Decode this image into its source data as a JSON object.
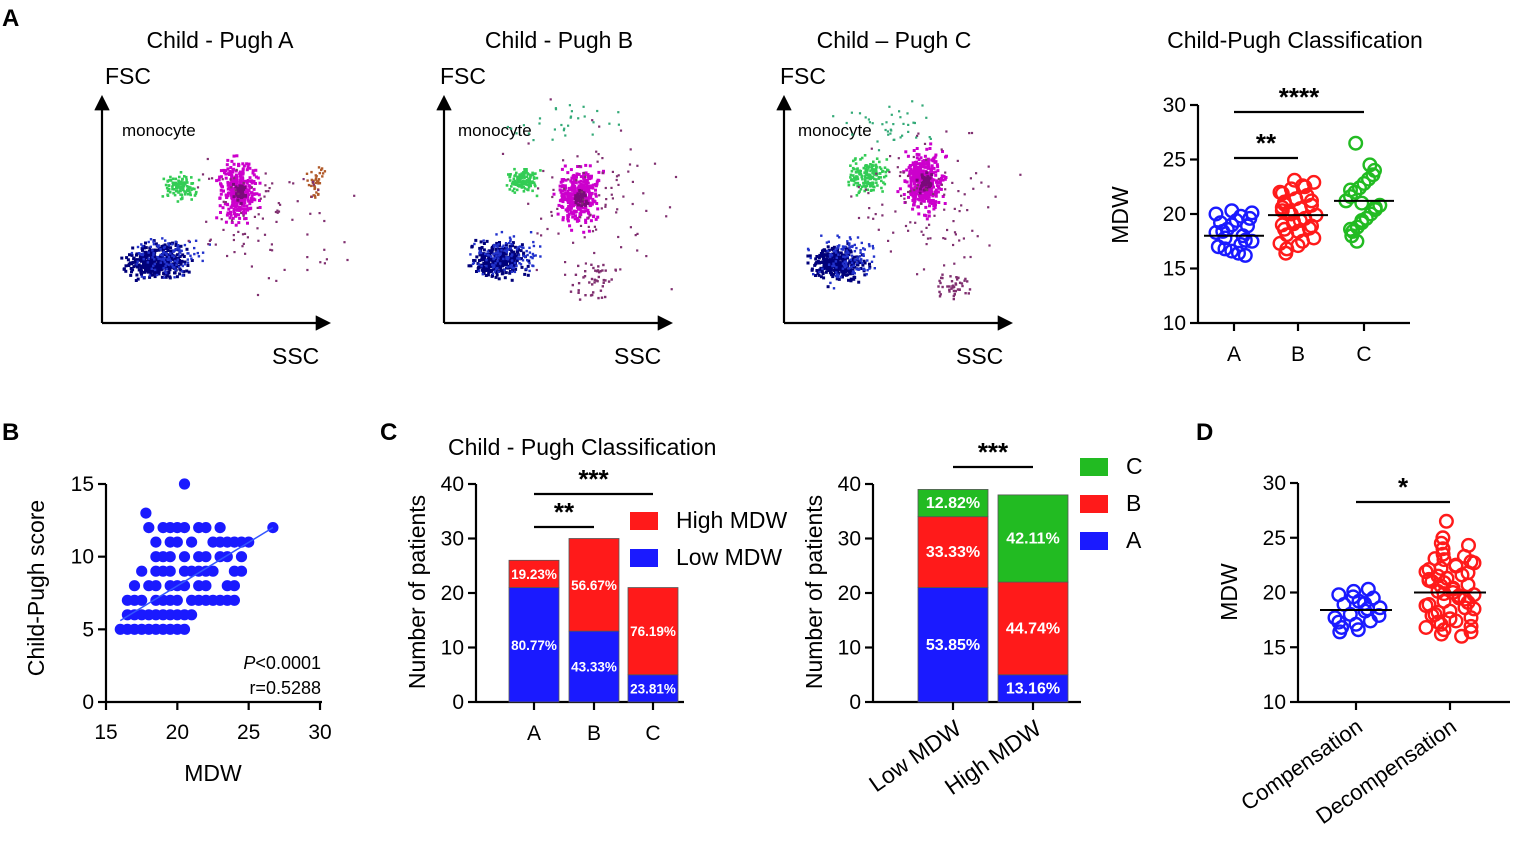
{
  "panels": {
    "A": "A",
    "B": "B",
    "C": "C",
    "D": "D"
  },
  "flow": [
    {
      "title": "Child - Pugh A",
      "ylabel": "FSC",
      "xlabel": "SSC",
      "gate": "monocyte"
    },
    {
      "title": "Child - Pugh B",
      "ylabel": "FSC",
      "xlabel": "SSC",
      "gate": "monocyte"
    },
    {
      "title": "Child – Pugh C",
      "ylabel": "FSC",
      "xlabel": "SSC",
      "gate": "monocyte"
    }
  ],
  "colors": {
    "blue": "#1a1aff",
    "red": "#ff1a1a",
    "green": "#22bb22",
    "darkblue": "#00007a",
    "magenta": "#cc00cc",
    "flowgreen": "#33cc55"
  },
  "chart_data": [
    {
      "id": "A_scatter",
      "type": "scatter",
      "title": "Child-Pugh Classification",
      "ylabel": "MDW",
      "categories": [
        "A",
        "B",
        "C"
      ],
      "ylim": [
        10,
        30
      ],
      "yticks": [
        10,
        15,
        20,
        25,
        30
      ],
      "series": [
        {
          "name": "A",
          "median": 18.0,
          "values": [
            17.2,
            17.5,
            17.8,
            18.0,
            18.3,
            18.6,
            19.0,
            19.4,
            19.8,
            20.1,
            20.3,
            17.0,
            16.8,
            16.6,
            16.4,
            16.2,
            18.9,
            19.2,
            17.6,
            18.4,
            19.6,
            20.0
          ]
        },
        {
          "name": "B",
          "median": 19.9,
          "values": [
            16.4,
            16.8,
            17.1,
            17.5,
            17.8,
            18.1,
            18.4,
            18.7,
            19.0,
            19.3,
            19.6,
            19.9,
            20.2,
            20.5,
            20.8,
            21.1,
            21.4,
            21.7,
            22.0,
            22.3,
            22.6,
            22.9,
            23.1,
            18.6,
            19.4,
            20.0,
            20.6,
            21.2,
            19.1,
            20.3,
            21.9,
            17.3,
            22.5,
            18.9,
            20.9
          ]
        },
        {
          "name": "C",
          "median": 21.2,
          "values": [
            17.5,
            18.0,
            18.4,
            18.8,
            19.2,
            19.6,
            20.0,
            20.4,
            20.8,
            21.2,
            21.6,
            22.0,
            22.4,
            22.8,
            23.2,
            23.6,
            24.0,
            24.5,
            26.5,
            19.4,
            21.0,
            22.2,
            20.6,
            18.6
          ]
        }
      ],
      "significance": [
        {
          "from": "A",
          "to": "B",
          "label": "**"
        },
        {
          "from": "A",
          "to": "C",
          "label": "****"
        }
      ]
    },
    {
      "id": "B_correlation",
      "type": "scatter",
      "xlabel": "MDW",
      "ylabel": "Child-Pugh score",
      "xlim": [
        15,
        30
      ],
      "ylim": [
        0,
        15
      ],
      "xticks": [
        15,
        20,
        25,
        30
      ],
      "yticks": [
        0,
        5,
        10,
        15
      ],
      "fit": {
        "x": [
          16.0,
          26.7
        ],
        "y": [
          5.6,
          12.0
        ]
      },
      "stats": {
        "p_italic": "P",
        "p_value": "<0.0001",
        "r": "r=0.5288"
      },
      "points": [
        [
          16,
          5
        ],
        [
          16.5,
          5
        ],
        [
          17,
          5
        ],
        [
          17.5,
          5
        ],
        [
          18,
          5
        ],
        [
          18.5,
          5
        ],
        [
          19,
          5
        ],
        [
          19.5,
          5
        ],
        [
          20,
          5
        ],
        [
          20.5,
          5
        ],
        [
          16.5,
          6
        ],
        [
          17,
          6
        ],
        [
          17.5,
          6
        ],
        [
          18,
          6
        ],
        [
          18.5,
          6
        ],
        [
          19,
          6
        ],
        [
          19.5,
          6
        ],
        [
          20,
          6
        ],
        [
          20.5,
          6
        ],
        [
          21,
          6
        ],
        [
          16.5,
          7
        ],
        [
          17,
          7
        ],
        [
          17.5,
          7
        ],
        [
          18.5,
          7
        ],
        [
          19,
          7
        ],
        [
          19.5,
          7
        ],
        [
          20,
          7
        ],
        [
          21,
          7
        ],
        [
          21.5,
          7
        ],
        [
          22,
          7
        ],
        [
          22.5,
          7
        ],
        [
          23,
          7
        ],
        [
          23.5,
          7
        ],
        [
          24,
          7
        ],
        [
          17,
          8
        ],
        [
          18,
          8
        ],
        [
          18.5,
          8
        ],
        [
          19.5,
          8
        ],
        [
          20,
          8
        ],
        [
          20.5,
          8
        ],
        [
          21.5,
          8
        ],
        [
          22,
          8
        ],
        [
          23.5,
          8
        ],
        [
          24,
          8
        ],
        [
          17.5,
          9
        ],
        [
          18.5,
          9
        ],
        [
          19,
          9
        ],
        [
          19.5,
          9
        ],
        [
          20.5,
          9
        ],
        [
          21,
          9
        ],
        [
          21.5,
          9
        ],
        [
          22,
          9
        ],
        [
          22.5,
          9
        ],
        [
          24,
          9
        ],
        [
          24.5,
          9
        ],
        [
          18.5,
          10
        ],
        [
          19,
          10
        ],
        [
          19.5,
          10
        ],
        [
          20.5,
          10
        ],
        [
          21.5,
          10
        ],
        [
          22,
          10
        ],
        [
          23,
          10
        ],
        [
          23.5,
          10
        ],
        [
          24.5,
          10
        ],
        [
          18.5,
          11
        ],
        [
          19.5,
          11
        ],
        [
          20,
          11
        ],
        [
          21,
          11
        ],
        [
          22.5,
          11
        ],
        [
          23,
          11
        ],
        [
          23.5,
          11
        ],
        [
          24,
          11
        ],
        [
          24.5,
          11
        ],
        [
          25,
          11
        ],
        [
          18,
          12
        ],
        [
          19,
          12
        ],
        [
          19.5,
          12
        ],
        [
          20,
          12
        ],
        [
          20.5,
          12
        ],
        [
          21.5,
          12
        ],
        [
          22,
          12
        ],
        [
          23,
          12
        ],
        [
          26.7,
          12
        ],
        [
          17.8,
          13
        ],
        [
          20.5,
          15
        ]
      ]
    },
    {
      "id": "C_stacked_left",
      "type": "bar",
      "title": "Child - Pugh  Classification",
      "ylabel": "Number of patients",
      "categories": [
        "A",
        "B",
        "C"
      ],
      "ylim": [
        0,
        40
      ],
      "yticks": [
        0,
        10,
        20,
        30,
        40
      ],
      "series": [
        {
          "name": "Low MDW",
          "values": [
            21,
            13,
            5
          ],
          "labels": [
            "80.77%",
            "43.33%",
            "23.81%"
          ]
        },
        {
          "name": "High MDW",
          "values": [
            5,
            17,
            16
          ],
          "labels": [
            "19.23%",
            "56.67%",
            "76.19%"
          ]
        }
      ],
      "legend": [
        "High MDW",
        "Low MDW"
      ],
      "significance": [
        {
          "from": "A",
          "to": "B",
          "label": "**"
        },
        {
          "from": "A",
          "to": "C",
          "label": "***"
        }
      ]
    },
    {
      "id": "C_stacked_right",
      "type": "bar",
      "ylabel": "Number of patients",
      "categories": [
        "Low MDW",
        "High MDW"
      ],
      "ylim": [
        0,
        40
      ],
      "yticks": [
        0,
        10,
        20,
        30,
        40
      ],
      "series": [
        {
          "name": "A",
          "values": [
            21,
            5
          ],
          "labels": [
            "53.85%",
            "13.16%"
          ]
        },
        {
          "name": "B",
          "values": [
            13,
            17
          ],
          "labels": [
            "33.33%",
            "44.74%"
          ]
        },
        {
          "name": "C",
          "values": [
            5,
            16
          ],
          "labels": [
            "12.82%",
            "42.11%"
          ]
        }
      ],
      "legend": [
        "C",
        "B",
        "A"
      ],
      "significance": [
        {
          "from": "Low MDW",
          "to": "High MDW",
          "label": "***"
        }
      ]
    },
    {
      "id": "D_scatter",
      "type": "scatter",
      "ylabel": "MDW",
      "categories": [
        "Compensation",
        "Decompensation"
      ],
      "ylim": [
        10,
        30
      ],
      "yticks": [
        10,
        15,
        20,
        25,
        30
      ],
      "series": [
        {
          "name": "Compensation",
          "median": 18.4,
          "values": [
            16.4,
            16.8,
            17.1,
            17.4,
            17.7,
            18.0,
            18.3,
            18.6,
            18.9,
            19.2,
            19.5,
            19.8,
            20.1,
            20.3,
            17.9,
            18.5,
            19.0,
            19.6,
            16.6,
            17.3
          ]
        },
        {
          "name": "Decompensation",
          "median": 20.0,
          "values": [
            16.0,
            16.4,
            16.8,
            17.1,
            17.4,
            17.7,
            18.0,
            18.3,
            18.6,
            18.9,
            19.2,
            19.5,
            19.8,
            20.1,
            20.4,
            20.7,
            21.0,
            21.3,
            21.6,
            21.9,
            22.2,
            22.5,
            22.8,
            23.1,
            23.5,
            24.0,
            24.5,
            25.0,
            26.5,
            16.2,
            16.9,
            17.6,
            18.2,
            18.8,
            19.4,
            20.0,
            20.6,
            21.2,
            21.8,
            22.4,
            23.0,
            17.3,
            18.5,
            19.7,
            20.9,
            22.1,
            23.3,
            17.9,
            19.1,
            20.3,
            21.5,
            22.7,
            24.3,
            16.6,
            19.9,
            21.1
          ]
        }
      ],
      "significance": [
        {
          "from": "Compensation",
          "to": "Decompensation",
          "label": "*"
        }
      ]
    }
  ]
}
